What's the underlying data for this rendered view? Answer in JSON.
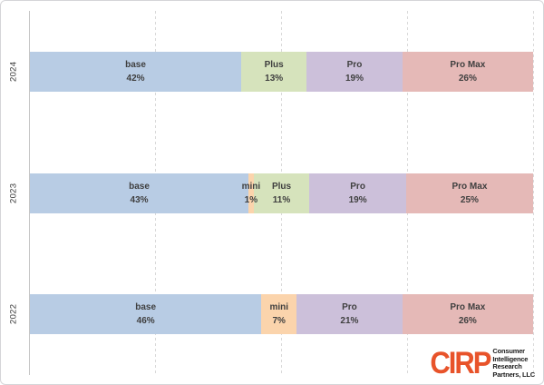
{
  "chart_data": {
    "type": "bar",
    "subtype": "100pct-stacked-horizontal",
    "title": "",
    "xlabel": "",
    "ylabel": "",
    "categories": [
      "2024",
      "2023",
      "2022"
    ],
    "series": [
      {
        "name": "base",
        "values": [
          42,
          43,
          46
        ]
      },
      {
        "name": "mini",
        "values": [
          0,
          1,
          7
        ]
      },
      {
        "name": "Plus",
        "values": [
          13,
          11,
          0
        ]
      },
      {
        "name": "Pro",
        "values": [
          19,
          19,
          21
        ]
      },
      {
        "name": "Pro Max",
        "values": [
          26,
          25,
          26
        ]
      }
    ],
    "colors": {
      "base": "#B8CCE4",
      "mini": "#FBD4AC",
      "Plus": "#D6E3BC",
      "Pro": "#CCC0DA",
      "Pro Max": "#E5B9B7"
    },
    "xlim": [
      0,
      100
    ],
    "gridlines_pct": [
      25,
      50,
      75,
      100
    ],
    "grid_style": "dashed",
    "legend": "none",
    "data_label_format": "{name} {value}%"
  },
  "branding": {
    "logo_abbr": "CIRP",
    "logo_color": "#E8532A",
    "logo_lines": [
      "Consumer",
      "Intelligence",
      "Research",
      "Partners, LLC"
    ]
  }
}
